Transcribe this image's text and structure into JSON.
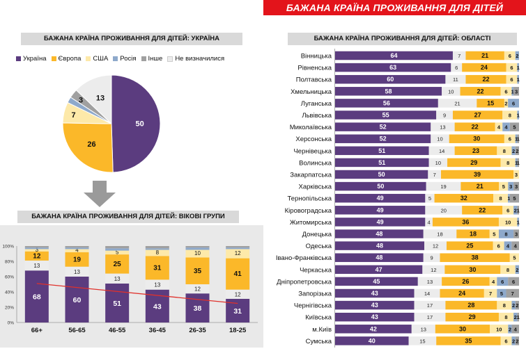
{
  "banner": "БАЖАНА КРАЇНА ПРОЖИВАННЯ ДЛЯ ДІТЕЙ",
  "colors": {
    "ukraine": "#5b3c7f",
    "europe": "#fbb829",
    "usa": "#fde9a9",
    "russia": "#8ea9cb",
    "other": "#a0a0a0",
    "undecided": "#ececec",
    "trend": "#e0312b",
    "banner": "#e3141b"
  },
  "legend_items": [
    "Україна",
    "Європа",
    "США",
    "Росія",
    "Інше",
    "Не визначилися"
  ],
  "chart_data": [
    {
      "type": "pie",
      "title": "БАЖАНА КРАЇНА ПРОЖИВАННЯ ДЛЯ ДІТЕЙ: УКРАЇНА",
      "labels": [
        "Україна",
        "Європа",
        "США",
        "Росія",
        "Інше",
        "Не визначилися"
      ],
      "values": [
        50,
        26,
        7,
        2,
        3,
        13
      ],
      "display_labels": [
        "50",
        "26",
        "7",
        "",
        "3",
        "13"
      ]
    },
    {
      "type": "bar",
      "stacked": true,
      "title": "БАЖАНА КРАЇНА ПРОЖИВАННЯ ДЛЯ ДІТЕЙ: ВІКОВІ ГРУПИ",
      "categories": [
        "66+",
        "56-65",
        "46-55",
        "36-45",
        "26-35",
        "18-25"
      ],
      "yticks": [
        "0%",
        "20%",
        "40%",
        "60%",
        "80%",
        "100%"
      ],
      "ylim": [
        0,
        100
      ],
      "series": [
        {
          "name": "Україна",
          "values": [
            68,
            60,
            51,
            43,
            38,
            31
          ]
        },
        {
          "name": "Не визначилися",
          "values": [
            13,
            13,
            13,
            13,
            12,
            12
          ]
        },
        {
          "name": "Європа",
          "values": [
            12,
            19,
            25,
            31,
            35,
            41
          ]
        },
        {
          "name": "США",
          "values": [
            3,
            4,
            5,
            8,
            10,
            12
          ]
        },
        {
          "name": "Росія",
          "values": [
            2,
            2,
            3,
            2,
            3,
            2
          ]
        },
        {
          "name": "Інше",
          "values": [
            2,
            2,
            3,
            3,
            2,
            2
          ]
        }
      ],
      "labels": {
        "Україна": [
          "68",
          "60",
          "51",
          "43",
          "38",
          "31"
        ],
        "Не визначилися": [
          "13",
          "13",
          "13",
          "13",
          "12",
          "12"
        ],
        "Європа": [
          "12",
          "19",
          "25",
          "31",
          "35",
          "41"
        ],
        "США": [
          "3",
          "4",
          "5",
          "8",
          "10",
          "12"
        ]
      },
      "trendline": {
        "series": "Україна",
        "from": 51,
        "to": 25
      }
    },
    {
      "type": "bar",
      "stacked": true,
      "orientation": "horizontal",
      "title": "БАЖАНА КРАЇНА ПРОЖИВАННЯ ДЛЯ ДІТЕЙ: ОБЛАСТІ",
      "categories": [
        "Вінницька",
        "Рівненська",
        "Полтавська",
        "Хмельницька",
        "Луганська",
        "Львівська",
        "Миколаївська",
        "Херсонська",
        "Чернівецька",
        "Волинська",
        "Закарпатська",
        "Харківська",
        "Тернопільська",
        "Кіровоградська",
        "Житомирська",
        "Донецька",
        "Одеська",
        "Івано-Франківська",
        "Черкаська",
        "Дніпропетровська",
        "Запорізька",
        "Чернігівська",
        "Київська",
        "м.Київ",
        "Сумська"
      ],
      "series": [
        {
          "name": "Україна",
          "values": [
            64,
            63,
            60,
            58,
            56,
            55,
            52,
            52,
            51,
            51,
            50,
            50,
            49,
            49,
            49,
            48,
            48,
            48,
            47,
            45,
            43,
            43,
            43,
            42,
            40
          ]
        },
        {
          "name": "Не визначилися",
          "values": [
            7,
            6,
            11,
            10,
            21,
            9,
            13,
            10,
            14,
            10,
            7,
            19,
            5,
            20,
            4,
            18,
            12,
            9,
            12,
            13,
            14,
            17,
            17,
            13,
            15
          ]
        },
        {
          "name": "Європа",
          "values": [
            21,
            24,
            22,
            22,
            15,
            27,
            22,
            30,
            23,
            29,
            39,
            21,
            32,
            22,
            36,
            18,
            25,
            38,
            30,
            26,
            24,
            28,
            29,
            30,
            35
          ]
        },
        {
          "name": "США",
          "values": [
            6,
            6,
            6,
            6,
            2,
            8,
            4,
            6,
            8,
            8,
            3,
            5,
            8,
            6,
            10,
            5,
            6,
            5,
            8,
            4,
            7,
            8,
            8,
            10,
            6
          ]
        },
        {
          "name": "Росія",
          "values": [
            2,
            1,
            1,
            1,
            6,
            1,
            4,
            1,
            2,
            1,
            0,
            3,
            1,
            2,
            1,
            8,
            4,
            0,
            2,
            6,
            5,
            2,
            2,
            2,
            2
          ]
        },
        {
          "name": "Інше",
          "values": [
            0,
            0,
            0,
            3,
            0,
            0,
            5,
            1,
            2,
            1,
            0,
            3,
            5,
            1,
            0,
            3,
            4,
            0,
            0,
            6,
            7,
            2,
            1,
            4,
            2
          ]
        }
      ],
      "labels": {
        "Україна": [
          "64",
          "63",
          "60",
          "58",
          "56",
          "55",
          "52",
          "52",
          "51",
          "51",
          "50",
          "50",
          "49",
          "49",
          "49",
          "48",
          "48",
          "48",
          "47",
          "45",
          "43",
          "43",
          "43",
          "42",
          "40"
        ],
        "Не визначилися": [
          "7",
          "6",
          "11",
          "10",
          "21",
          "9",
          "13",
          "10",
          "14",
          "10",
          "7",
          "19",
          "5",
          "20",
          "4",
          "18",
          "12",
          "9",
          "12",
          "13",
          "14",
          "17",
          "17",
          "13",
          "15"
        ],
        "Європа": [
          "21",
          "24",
          "22",
          "22",
          "15",
          "27",
          "22",
          "30",
          "23",
          "29",
          "39",
          "21",
          "32",
          "22",
          "36",
          "18",
          "25",
          "38",
          "30",
          "26",
          "24",
          "28",
          "29",
          "30",
          "35"
        ],
        "США": [
          "6",
          "6",
          "6",
          "6",
          "2",
          "8",
          "4",
          "6",
          "8",
          "8",
          "3",
          "5",
          "8",
          "6",
          "10",
          "5",
          "6",
          "5",
          "8",
          "4",
          "7",
          "8",
          "8",
          "10",
          "6"
        ],
        "Росія": [
          "2",
          "1",
          "1",
          "1",
          "6",
          "1",
          "4",
          "1",
          "2",
          "1",
          "",
          "3",
          "1",
          "2",
          "1",
          "8",
          "4",
          "",
          "2",
          "6",
          "5",
          "2",
          "2",
          "2",
          "2"
        ],
        "Інше": [
          "",
          "",
          "",
          "3",
          "",
          "",
          "5",
          "1",
          "2",
          "1",
          "",
          "3",
          "5",
          "1",
          "",
          "3",
          "4",
          "",
          "",
          "6",
          "7",
          "2",
          "1",
          "4",
          "2"
        ]
      }
    }
  ]
}
